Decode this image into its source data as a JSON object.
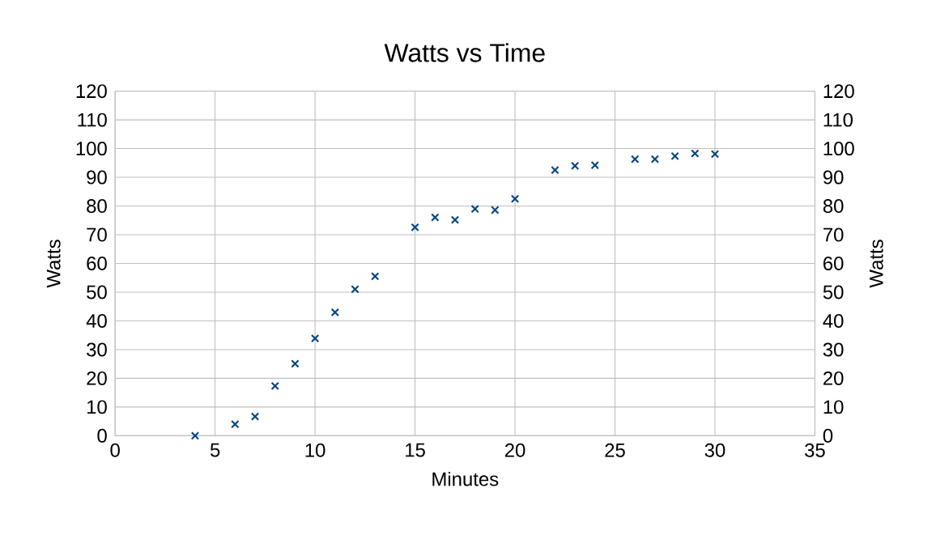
{
  "chart_data": {
    "type": "scatter",
    "title": "Watts vs Time",
    "xlabel": "Minutes",
    "ylabel": "Watts",
    "y2label": "Watts",
    "x": [
      4,
      6,
      7,
      8,
      9,
      10,
      11,
      12,
      13,
      15,
      16,
      17,
      18,
      19,
      20,
      22,
      23,
      24,
      26,
      27,
      28,
      29,
      30
    ],
    "series": [
      {
        "color": "#004586",
        "values": [
          0,
          4,
          6.7,
          17.3,
          25.1,
          33.9,
          43,
          51,
          55.5,
          72.6,
          76,
          75.2,
          79,
          78.6,
          82.5,
          92.5,
          94,
          94.2,
          96.3,
          96.3,
          97.4,
          98.3,
          98.1
        ]
      }
    ],
    "xlim": [
      0,
      35
    ],
    "xticks": [
      0,
      5,
      10,
      15,
      20,
      25,
      30,
      35
    ],
    "ylim": [
      0,
      120
    ],
    "yticks": [
      0,
      10,
      20,
      30,
      40,
      50,
      60,
      70,
      80,
      90,
      100,
      110,
      120
    ],
    "y2lim": [
      0,
      120
    ],
    "y2ticks": [
      0,
      10,
      20,
      30,
      40,
      50,
      60,
      70,
      80,
      90,
      100,
      110,
      120
    ],
    "grid": true,
    "marker": "cross"
  }
}
